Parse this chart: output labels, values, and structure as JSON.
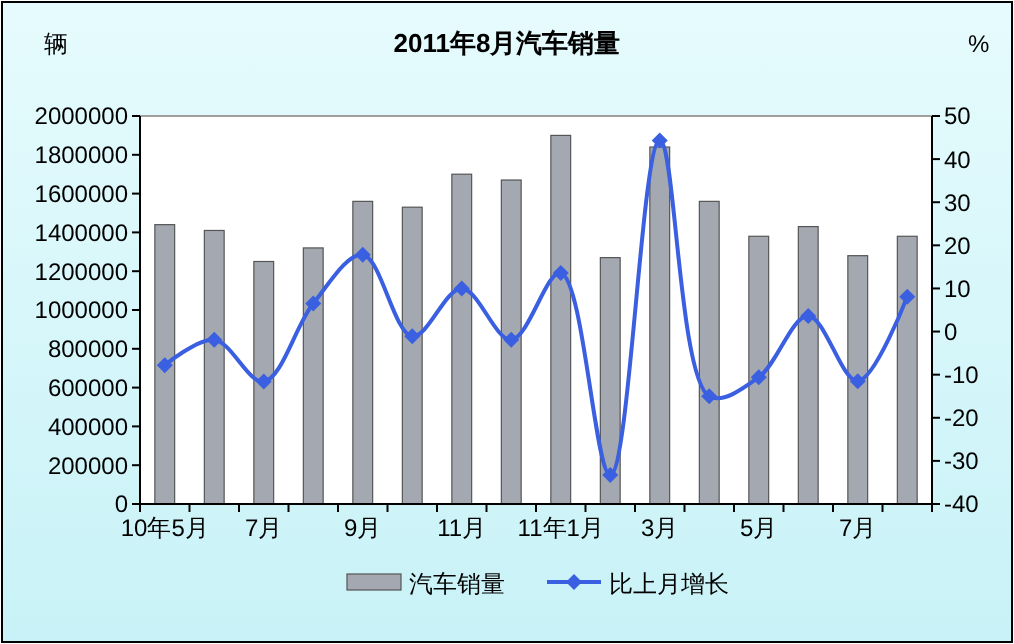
{
  "chart_data": {
    "type": "bar",
    "title": "2011年8月汽车销量",
    "ylabel": "辆",
    "y2label": "%",
    "categories": [
      "10年5月",
      null,
      "7月",
      null,
      "9月",
      null,
      "11月",
      null,
      "11年1月",
      null,
      "3月",
      null,
      "5月",
      null,
      "7月",
      null
    ],
    "series": [
      {
        "name": "汽车销量",
        "color": "#a4a8b0",
        "values": [
          1440000,
          1410000,
          1250000,
          1320000,
          1560000,
          1530000,
          1700000,
          1670000,
          1900000,
          1270000,
          1840000,
          1560000,
          1380000,
          1430000,
          1280000,
          1380000
        ]
      },
      {
        "name": "比上月增长",
        "type": "line",
        "axis": "y2",
        "color": "#3a5fe0",
        "marker": "diamond",
        "values": [
          -7.8,
          -1.9,
          -11.6,
          6.5,
          17.8,
          -1.1,
          10.0,
          -1.9,
          13.6,
          -33.3,
          44.3,
          -15.0,
          -10.6,
          3.6,
          -11.5,
          8.1
        ]
      }
    ],
    "ylim": [
      0,
      2000000
    ],
    "yticks": [
      0,
      200000,
      400000,
      600000,
      800000,
      1000000,
      1200000,
      1400000,
      1600000,
      1800000,
      2000000
    ],
    "y2lim": [
      -40,
      50
    ],
    "y2ticks": [
      -40,
      -30,
      -20,
      -10,
      0,
      10,
      20,
      30,
      40,
      50
    ],
    "legend": "bottom",
    "grid": false
  }
}
